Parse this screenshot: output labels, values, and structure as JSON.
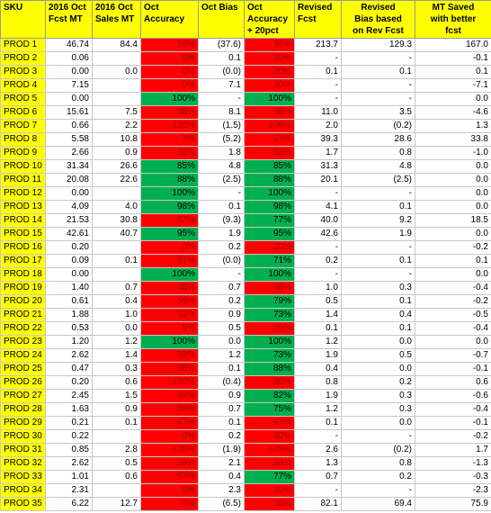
{
  "table": {
    "headers": [
      [
        "SKU"
      ],
      [
        "2016 Oct",
        "Fcst MT"
      ],
      [
        "2016 Oct",
        "Sales MT"
      ],
      [
        "Oct",
        "Accuracy"
      ],
      [
        "Oct Bias"
      ],
      [
        "Oct",
        "Accuracy",
        "+ 20pct"
      ],
      [
        "Revised",
        "Fcst"
      ],
      [
        "Revised",
        "Bias based",
        "on Rev Fcst"
      ],
      [
        "MT Saved",
        "with better",
        "fcst"
      ]
    ],
    "rows": [
      [
        "PROD 1",
        "46.74",
        "84.4",
        "19%",
        "(37.6)",
        "39%",
        "213.7",
        "129.3",
        "167.0"
      ],
      [
        "PROD 2",
        "0.06",
        "",
        "0%",
        "0.1",
        "20%",
        "-",
        "-",
        "-0.1"
      ],
      [
        "PROD 3",
        "0.00",
        "0.0",
        "0%",
        "(0.0)",
        "20%",
        "0.1",
        "0.1",
        "0.1"
      ],
      [
        "PROD 4",
        "7.15",
        "",
        "0%",
        "7.1",
        "20%",
        "-",
        "-",
        "-7.1"
      ],
      [
        "PROD 5",
        "0.00",
        "",
        "100%",
        "-",
        "100%",
        "-",
        "-",
        "0.0"
      ],
      [
        "PROD 6",
        "15.61",
        "7.5",
        "48%",
        "8.1",
        "68%",
        "11.0",
        "3.5",
        "-4.6"
      ],
      [
        "PROD 7",
        "0.66",
        "2.2",
        "-126%",
        "(1.5)",
        "-106%",
        "2.0",
        "(0.2)",
        "1.3"
      ],
      [
        "PROD 8",
        "5.58",
        "10.8",
        "7%",
        "(5.2)",
        "27%",
        "39.3",
        "28.6",
        "33.8"
      ],
      [
        "PROD 9",
        "2.66",
        "0.9",
        "33%",
        "1.8",
        "53%",
        "1.7",
        "0.8",
        "-1.0"
      ],
      [
        "PROD 10",
        "31.34",
        "26.6",
        "85%",
        "4.8",
        "85%",
        "31.3",
        "4.8",
        "0.0"
      ],
      [
        "PROD 11",
        "20.08",
        "22.6",
        "88%",
        "(2.5)",
        "88%",
        "20.1",
        "(2.5)",
        "0.0"
      ],
      [
        "PROD 12",
        "0.00",
        "",
        "100%",
        "-",
        "100%",
        "-",
        "-",
        "0.0"
      ],
      [
        "PROD 13",
        "4.09",
        "4.0",
        "98%",
        "0.1",
        "98%",
        "4.1",
        "0.1",
        "0.0"
      ],
      [
        "PROD 14",
        "21.53",
        "30.8",
        "57%",
        "(9.3)",
        "77%",
        "40.0",
        "9.2",
        "18.5"
      ],
      [
        "PROD 15",
        "42.61",
        "40.7",
        "95%",
        "1.9",
        "95%",
        "42.6",
        "1.9",
        "0.0"
      ],
      [
        "PROD 16",
        "0.20",
        "",
        "0%",
        "0.2",
        "20%",
        "-",
        "-",
        "-0.2"
      ],
      [
        "PROD 17",
        "0.09",
        "0.1",
        "51%",
        "(0.0)",
        "71%",
        "0.2",
        "0.1",
        "0.1"
      ],
      [
        "PROD 18",
        "0.00",
        "",
        "100%",
        "-",
        "100%",
        "-",
        "-",
        "0.0"
      ],
      [
        "PROD 19",
        "1.40",
        "0.7",
        "48%",
        "0.7",
        "68%",
        "1.0",
        "0.3",
        "-0.4"
      ],
      [
        "PROD 20",
        "0.61",
        "0.4",
        "59%",
        "0.2",
        "79%",
        "0.5",
        "0.1",
        "-0.2"
      ],
      [
        "PROD 21",
        "1.88",
        "1.0",
        "53%",
        "0.9",
        "73%",
        "1.4",
        "0.4",
        "-0.5"
      ],
      [
        "PROD 22",
        "0.53",
        "0.0",
        "5%",
        "0.5",
        "25%",
        "0.1",
        "0.1",
        "-0.4"
      ],
      [
        "PROD 23",
        "1.20",
        "1.2",
        "100%",
        "0.0",
        "100%",
        "1.2",
        "0.0",
        "0.0"
      ],
      [
        "PROD 24",
        "2.62",
        "1.4",
        "53%",
        "1.2",
        "73%",
        "1.9",
        "0.5",
        "-0.7"
      ],
      [
        "PROD 25",
        "0.47",
        "0.3",
        "68%",
        "0.1",
        "88%",
        "0.4",
        "0.0",
        "-0.1"
      ],
      [
        "PROD 26",
        "0.20",
        "0.6",
        "-100%",
        "(0.4)",
        "-80%",
        "0.8",
        "0.2",
        "0.6"
      ],
      [
        "PROD 27",
        "2.45",
        "1.5",
        "62%",
        "0.9",
        "82%",
        "1.9",
        "0.3",
        "-0.6"
      ],
      [
        "PROD 28",
        "1.63",
        "0.9",
        "55%",
        "0.7",
        "75%",
        "1.2",
        "0.3",
        "-0.4"
      ],
      [
        "PROD 29",
        "0.21",
        "0.1",
        "47%",
        "0.1",
        "67%",
        "0.1",
        "0.0",
        "-0.1"
      ],
      [
        "PROD 30",
        "0.22",
        "",
        "0%",
        "0.2",
        "20%",
        "-",
        "-",
        "-0.2"
      ],
      [
        "PROD 31",
        "0.85",
        "2.8",
        "-129%",
        "(1.9)",
        "-109%",
        "2.6",
        "(0.2)",
        "1.7"
      ],
      [
        "PROD 32",
        "2.62",
        "0.5",
        "19%",
        "2.1",
        "39%",
        "1.3",
        "0.8",
        "-1.3"
      ],
      [
        "PROD 33",
        "1.01",
        "0.6",
        "57%",
        "0.4",
        "77%",
        "0.7",
        "0.2",
        "-0.3"
      ],
      [
        "PROD 34",
        "2.31",
        "",
        "0%",
        "2.3",
        "20%",
        "-",
        "-",
        "-2.3"
      ],
      [
        "PROD 35",
        "6.22",
        "12.7",
        "-5%",
        "(6.5)",
        "15%",
        "82.1",
        "69.4",
        "75.9"
      ]
    ],
    "accuracy_status": [
      [
        "red",
        "red"
      ],
      [
        "red",
        "red"
      ],
      [
        "red",
        "red"
      ],
      [
        "red",
        "red"
      ],
      [
        "green",
        "green"
      ],
      [
        "red",
        "red"
      ],
      [
        "red",
        "red"
      ],
      [
        "red",
        "red"
      ],
      [
        "red",
        "red"
      ],
      [
        "green",
        "green"
      ],
      [
        "green",
        "green"
      ],
      [
        "green",
        "green"
      ],
      [
        "green",
        "green"
      ],
      [
        "red",
        "green"
      ],
      [
        "green",
        "green"
      ],
      [
        "red",
        "red"
      ],
      [
        "red",
        "green"
      ],
      [
        "green",
        "green"
      ],
      [
        "red",
        "red"
      ],
      [
        "red",
        "green"
      ],
      [
        "red",
        "green"
      ],
      [
        "red",
        "red"
      ],
      [
        "green",
        "green"
      ],
      [
        "red",
        "green"
      ],
      [
        "red",
        "green"
      ],
      [
        "red",
        "red"
      ],
      [
        "red",
        "green"
      ],
      [
        "red",
        "green"
      ],
      [
        "red",
        "red"
      ],
      [
        "red",
        "red"
      ],
      [
        "red",
        "red"
      ],
      [
        "red",
        "red"
      ],
      [
        "red",
        "green"
      ],
      [
        "red",
        "red"
      ],
      [
        "red",
        "red"
      ]
    ],
    "colors": {
      "header_fill": "#ffff00",
      "sku_fill": "#ffff00",
      "bad_fill": "#ff0000",
      "bad_text": "#990000",
      "good_fill": "#00b050"
    }
  }
}
